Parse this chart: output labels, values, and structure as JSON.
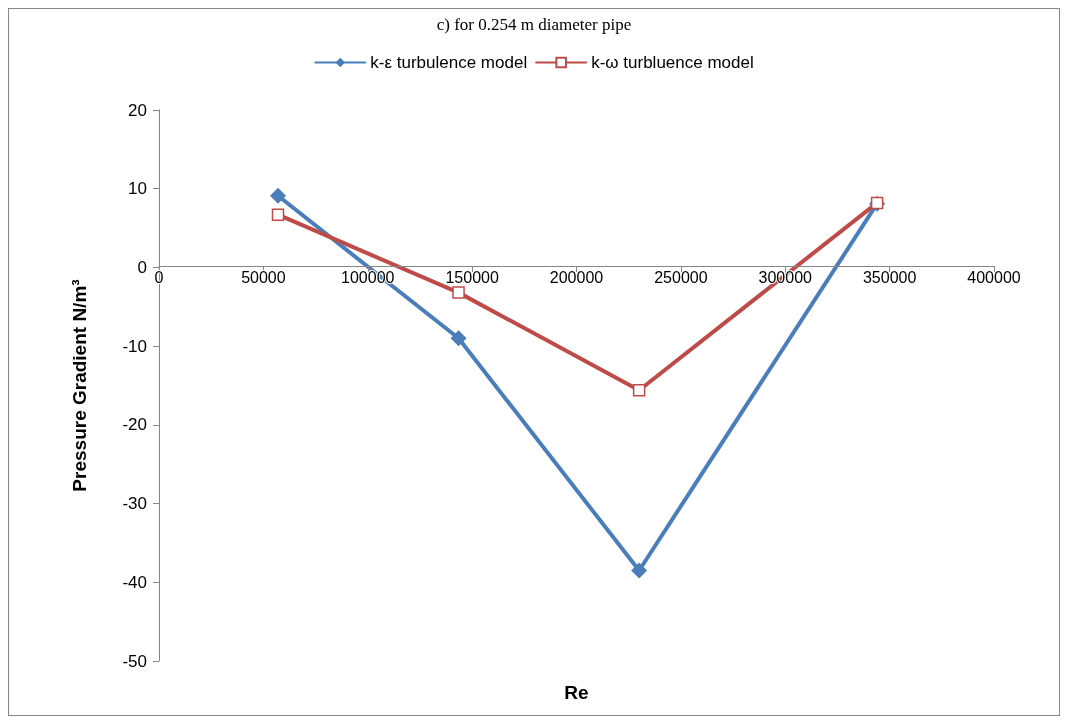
{
  "chart_data": {
    "type": "line",
    "title": "c) for 0.254 m diameter pipe",
    "xlabel": "Re",
    "ylabel": "Pressure Gradient N/m³",
    "x": [
      57000,
      143500,
      230000,
      344000
    ],
    "series": [
      {
        "name": "k-ε turbulence model",
        "color": "#4a7ebb",
        "marker": "diamond",
        "values": [
          9.1,
          -9.0,
          -38.5,
          8.1
        ]
      },
      {
        "name": "k-ω turbluence model",
        "color": "#be4b48",
        "marker": "square",
        "values": [
          6.7,
          -3.2,
          -15.6,
          8.2
        ]
      }
    ],
    "xlim": [
      0,
      400000
    ],
    "xticks": [
      0,
      50000,
      100000,
      150000,
      200000,
      250000,
      300000,
      350000,
      400000
    ],
    "ylim": [
      -50,
      20
    ],
    "yticks": [
      -50,
      -40,
      -30,
      -20,
      -10,
      0,
      10,
      20
    ],
    "grid": false,
    "legend": "top",
    "line_style": "solid"
  }
}
